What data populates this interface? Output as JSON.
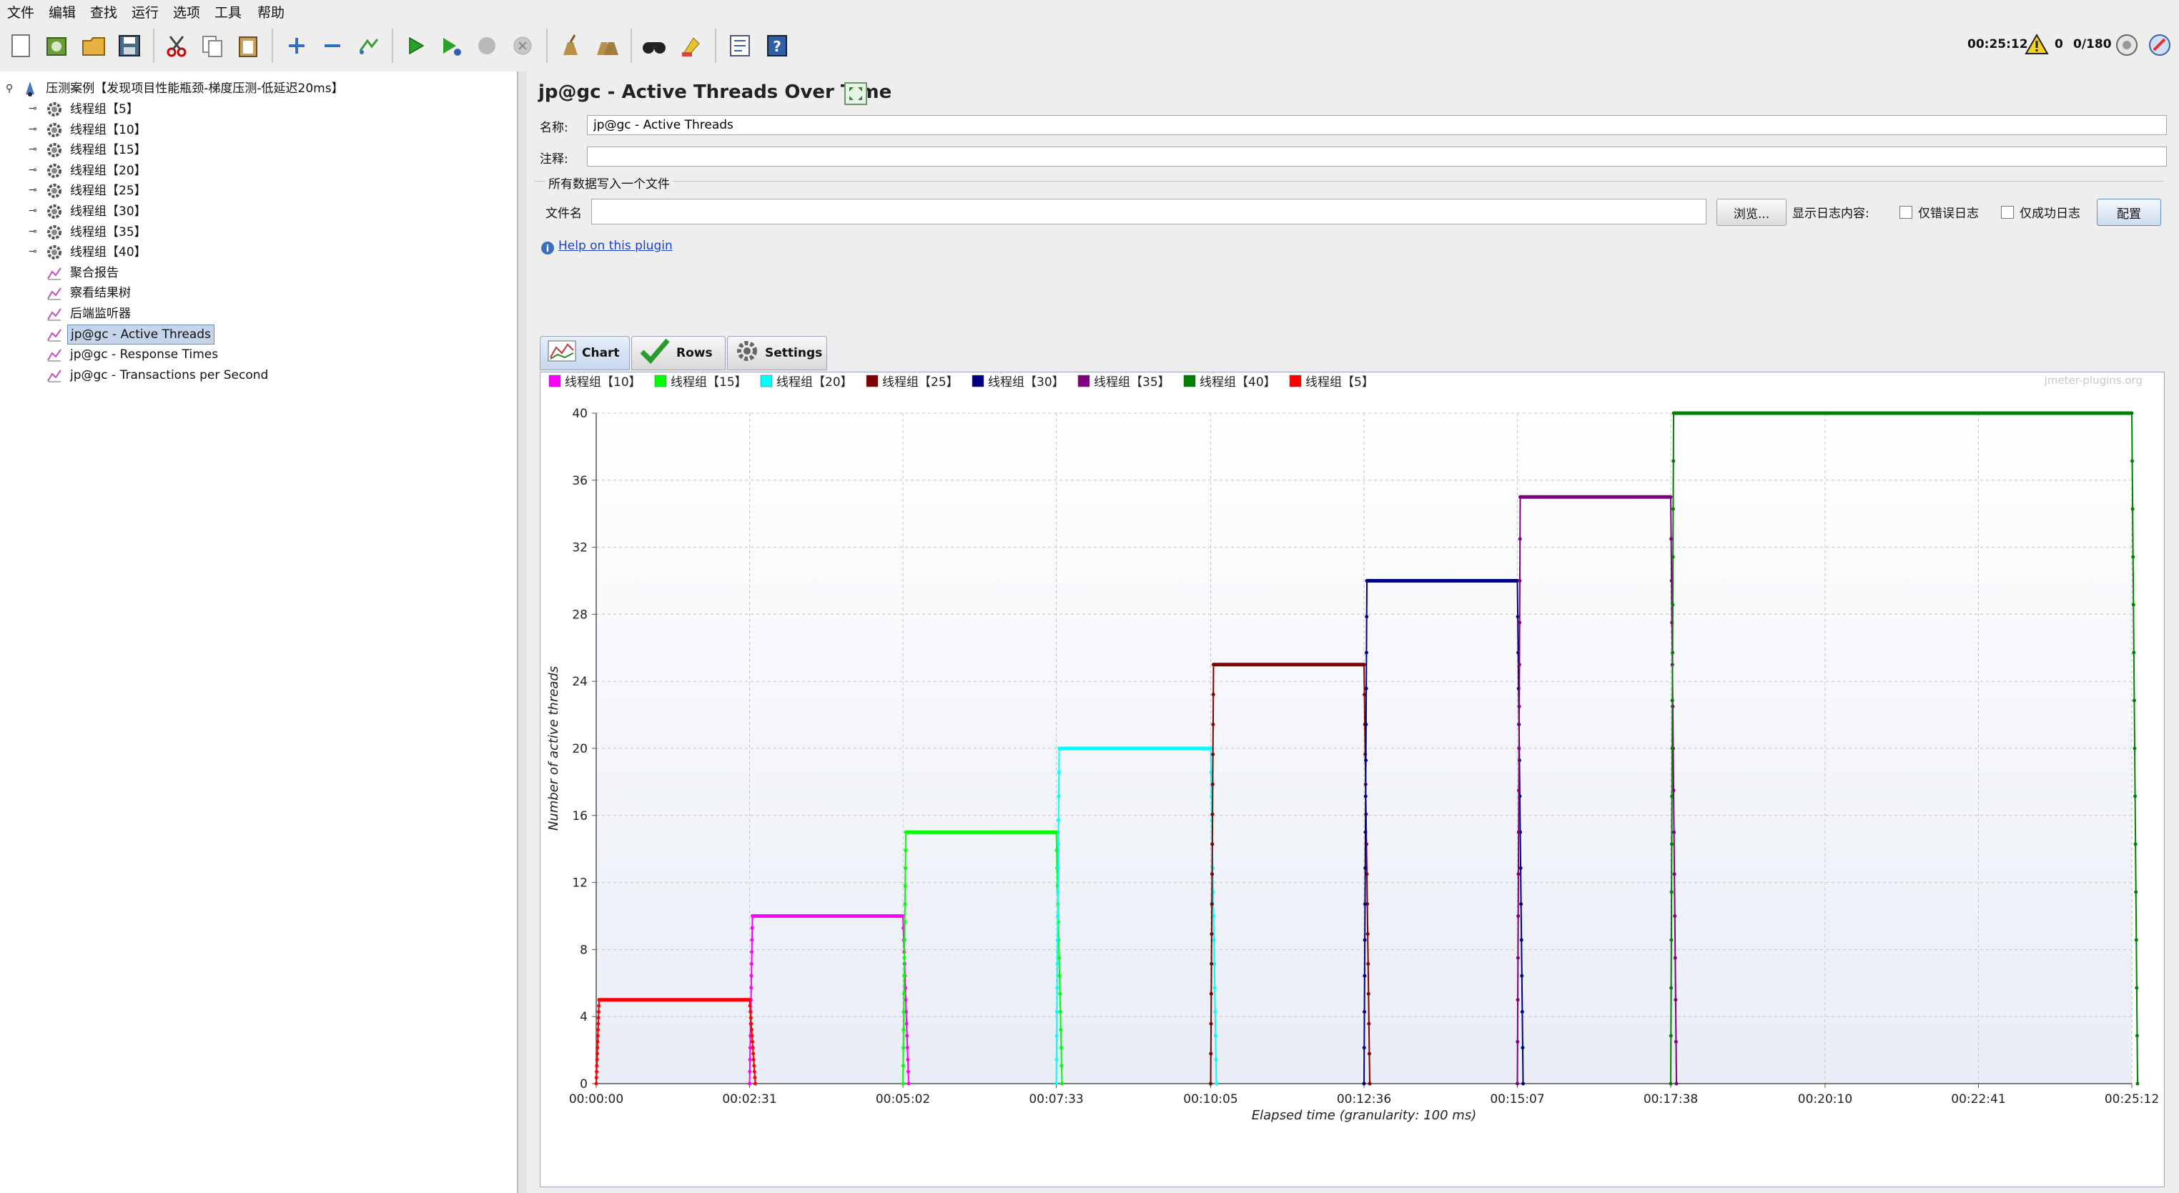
{
  "menu": [
    "文件",
    "编辑",
    "查找",
    "运行",
    "选项",
    "工具",
    "帮助"
  ],
  "toolbar": {
    "icons": [
      "new-icon",
      "templates-icon",
      "open-icon",
      "save-icon",
      "cut-icon",
      "copy-icon",
      "paste-icon",
      "expand-icon",
      "collapse-icon",
      "toggle-icon",
      "start-icon",
      "start-no-pauses-icon",
      "stop-icon",
      "shutdown-icon",
      "clear-icon",
      "clear-all-icon",
      "search-icon",
      "reset-search-icon",
      "function-helper-icon",
      "help-icon"
    ],
    "elapsed": "00:25:12",
    "warnings": "0",
    "threads": "0/180"
  },
  "tree": {
    "root": "压测案例【发现项目性能瓶颈-梯度压测-低延迟20ms】",
    "items": [
      {
        "label": "线程组【5】",
        "type": "thread-group"
      },
      {
        "label": "线程组【10】",
        "type": "thread-group"
      },
      {
        "label": "线程组【15】",
        "type": "thread-group"
      },
      {
        "label": "线程组【20】",
        "type": "thread-group"
      },
      {
        "label": "线程组【25】",
        "type": "thread-group"
      },
      {
        "label": "线程组【30】",
        "type": "thread-group"
      },
      {
        "label": "线程组【35】",
        "type": "thread-group"
      },
      {
        "label": "线程组【40】",
        "type": "thread-group"
      },
      {
        "label": "聚合报告",
        "type": "listener"
      },
      {
        "label": "察看结果树",
        "type": "listener"
      },
      {
        "label": "后端监听器",
        "type": "listener"
      },
      {
        "label": "jp@gc - Active Threads",
        "type": "listener",
        "selected": true
      },
      {
        "label": "jp@gc - Response Times",
        "type": "listener"
      },
      {
        "label": "jp@gc - Transactions per Second",
        "type": "listener"
      }
    ]
  },
  "panel": {
    "title": "jp@gc - Active Threads Over Time",
    "name_label": "名称:",
    "name_value": "jp@gc - Active Threads",
    "comment_label": "注释:",
    "comment_value": "",
    "file_section": "所有数据写入一个文件",
    "file_label": "文件名",
    "file_value": "",
    "browse": "浏览...",
    "log_label": "显示日志内容:",
    "errors_only": "仅错误日志",
    "success_only": "仅成功日志",
    "configure": "配置",
    "help_link": "Help on this plugin",
    "tabs": [
      "Chart",
      "Rows",
      "Settings"
    ]
  },
  "chart_data": {
    "type": "line",
    "watermark": "jmeter-plugins.org",
    "xlabel": "Elapsed time (granularity: 100 ms)",
    "ylabel": "Number of active threads",
    "ylim": [
      0,
      40
    ],
    "yticks": [
      0,
      4,
      8,
      12,
      16,
      20,
      24,
      28,
      32,
      36,
      40
    ],
    "xlim": [
      "00:00:00",
      "00:25:12"
    ],
    "xticks": [
      "00:00:00",
      "00:02:31",
      "00:05:02",
      "00:07:33",
      "00:10:05",
      "00:12:36",
      "00:15:07",
      "00:17:38",
      "00:20:10",
      "00:22:41",
      "00:25:12"
    ],
    "grid": true,
    "legend": "top",
    "series": [
      {
        "name": "线程组【10】",
        "color": "#ff00ff",
        "start": "00:02:31",
        "end": "00:05:02",
        "plateau": 10
      },
      {
        "name": "线程组【15】",
        "color": "#00ff00",
        "start": "00:05:02",
        "end": "00:07:33",
        "plateau": 15
      },
      {
        "name": "线程组【20】",
        "color": "#00ffff",
        "start": "00:07:33",
        "end": "00:10:05",
        "plateau": 20
      },
      {
        "name": "线程组【25】",
        "color": "#800000",
        "start": "00:10:05",
        "end": "00:12:36",
        "plateau": 25
      },
      {
        "name": "线程组【30】",
        "color": "#000080",
        "start": "00:12:36",
        "end": "00:15:07",
        "plateau": 30
      },
      {
        "name": "线程组【35】",
        "color": "#800080",
        "start": "00:15:07",
        "end": "00:17:38",
        "plateau": 35
      },
      {
        "name": "线程组【40】",
        "color": "#008000",
        "start": "00:17:38",
        "end": "00:25:12",
        "plateau": 40
      },
      {
        "name": "线程组【5】",
        "color": "#ff0000",
        "start": "00:00:00",
        "end": "00:02:31",
        "plateau": 5
      }
    ]
  }
}
